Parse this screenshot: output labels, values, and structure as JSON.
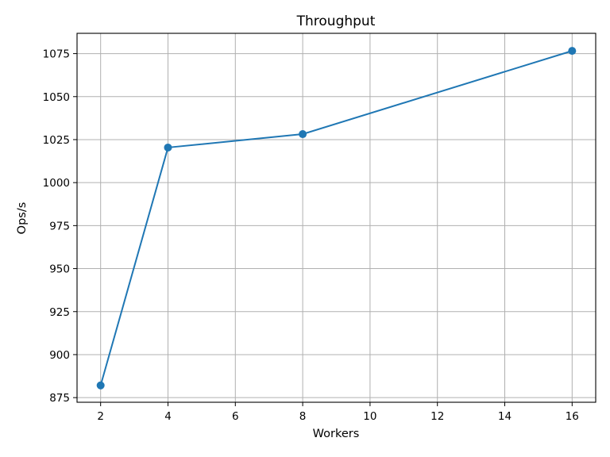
{
  "chart_data": {
    "type": "line",
    "title": "Throughput",
    "xlabel": "Workers",
    "ylabel": "Ops/s",
    "x": [
      2,
      4,
      8,
      16
    ],
    "series": [
      {
        "values": [
          882.1,
          1020.4,
          1028.2,
          1076.6
        ]
      }
    ],
    "xlim": [
      1.3,
      16.7
    ],
    "ylim": [
      872.3,
      1086.8
    ],
    "xticks": [
      2,
      4,
      6,
      8,
      10,
      12,
      14,
      16
    ],
    "yticks": [
      875,
      900,
      925,
      950,
      975,
      1000,
      1025,
      1050,
      1075
    ],
    "grid": true,
    "markers": true,
    "colors": {
      "line": "#1f77b4",
      "grid": "#b0b0b0",
      "axes": "#000000"
    }
  }
}
